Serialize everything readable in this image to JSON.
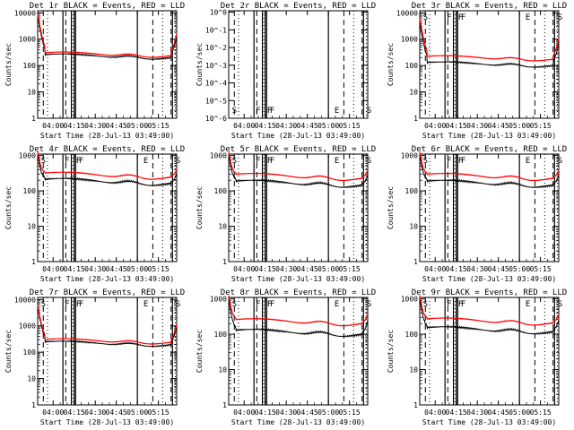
{
  "chart_data": {
    "type": "line",
    "x_tick_labels": [
      "04:00",
      "04:15",
      "04:30",
      "04:45",
      "05:00",
      "05:15"
    ],
    "x_tick_minutes": [
      0,
      15,
      30,
      45,
      60,
      75
    ],
    "x_start_minutes": -11,
    "x_end_minutes": 88,
    "xlabel": "Start Time (28-Jul-13 03:49:00)",
    "ylabel": "Counts/sec",
    "solid_markers_minutes": [
      7,
      13,
      15,
      16,
      60,
      85
    ],
    "dashed_markers_minutes": [
      -7,
      9,
      71,
      84
    ],
    "dotted_markers_minutes": [
      -4,
      14,
      78,
      87
    ],
    "letter_markers": [
      {
        "text": "S",
        "minutes": -10
      },
      {
        "text": "F",
        "minutes": 7
      },
      {
        "text": "F",
        "minutes": 15
      },
      {
        "text": "F",
        "minutes": 17
      },
      {
        "text": "E",
        "minutes": 63
      },
      {
        "text": "S",
        "minutes": 86
      }
    ],
    "series": [
      {
        "name": "Events",
        "color": "#000000"
      },
      {
        "name": "LLD",
        "color": "#ff0000"
      }
    ],
    "panels": [
      {
        "title": "Det 1r BLACK = Events, RED = LLD",
        "empty": false,
        "y_ticks": [
          1,
          10,
          100,
          1000,
          10000
        ],
        "y_tick_labels": [
          "1",
          "10",
          "100",
          "1000",
          "10000"
        ],
        "ylim": [
          1,
          12000
        ],
        "events_base": 220,
        "events_peak": 7000,
        "lld_base": 260,
        "lld_peak": 9000,
        "letters": false
      },
      {
        "title": "Det 2r BLACK = Events, RED = LLD",
        "empty": true,
        "y_ticks": [
          1,
          0.1,
          0.01,
          0.001,
          0.0001,
          1e-05,
          1e-06
        ],
        "y_tick_labels": [
          "10^0",
          "10^-1",
          "10^-2",
          "10^-3",
          "10^-4",
          "10^-5",
          "10^-6"
        ],
        "ylim": [
          1e-06,
          1.2
        ],
        "letters": true
      },
      {
        "title": "Det 3r BLACK = Events, RED = LLD",
        "empty": false,
        "y_ticks": [
          1,
          10,
          100,
          1000,
          10000
        ],
        "y_tick_labels": [
          "1",
          "10",
          "100",
          "1000",
          "10000"
        ],
        "ylim": [
          1,
          12000
        ],
        "events_base": 110,
        "events_peak": 4000,
        "lld_base": 190,
        "lld_peak": 6000,
        "letters": true
      },
      {
        "title": "Det 4r BLACK = Events, RED = LLD",
        "empty": false,
        "y_ticks": [
          1,
          10,
          100,
          1000
        ],
        "y_tick_labels": [
          "1",
          "10",
          "100",
          "1000"
        ],
        "ylim": [
          1,
          1100
        ],
        "events_base": 180,
        "events_peak": 900,
        "lld_base": 270,
        "lld_peak": 1000,
        "letters": true
      },
      {
        "title": "Det 5r BLACK = Events, RED = LLD",
        "empty": false,
        "y_ticks": [
          1,
          10,
          100,
          1000
        ],
        "y_tick_labels": [
          "1",
          "10",
          "100",
          "1000"
        ],
        "ylim": [
          1,
          1100
        ],
        "events_base": 160,
        "events_peak": 900,
        "lld_base": 250,
        "lld_peak": 1000,
        "letters": true
      },
      {
        "title": "Det 6r BLACK = Events, RED = LLD",
        "empty": false,
        "y_ticks": [
          1,
          10,
          100,
          1000
        ],
        "y_tick_labels": [
          "1",
          "10",
          "100",
          "1000"
        ],
        "ylim": [
          1,
          1100
        ],
        "events_base": 160,
        "events_peak": 900,
        "lld_base": 250,
        "lld_peak": 1000,
        "letters": true
      },
      {
        "title": "Det 7r BLACK = Events, RED = LLD",
        "empty": false,
        "y_ticks": [
          1,
          10,
          100,
          1000,
          10000
        ],
        "y_tick_labels": [
          "1",
          "10",
          "100",
          "1000",
          "10000"
        ],
        "ylim": [
          1,
          12000
        ],
        "events_base": 210,
        "events_peak": 5000,
        "lld_base": 260,
        "lld_peak": 6000,
        "letters": true
      },
      {
        "title": "Det 8r BLACK = Events, RED = LLD",
        "empty": false,
        "y_ticks": [
          1,
          10,
          100,
          1000
        ],
        "y_tick_labels": [
          "1",
          "10",
          "100",
          "1000"
        ],
        "ylim": [
          1,
          1100
        ],
        "events_base": 110,
        "events_peak": 900,
        "lld_base": 220,
        "lld_peak": 1000,
        "letters": true
      },
      {
        "title": "Det 9r BLACK = Events, RED = LLD",
        "empty": false,
        "y_ticks": [
          1,
          10,
          100,
          1000
        ],
        "y_tick_labels": [
          "1",
          "10",
          "100",
          "1000"
        ],
        "ylim": [
          1,
          1100
        ],
        "events_base": 130,
        "events_peak": 900,
        "lld_base": 230,
        "lld_peak": 1000,
        "letters": true
      }
    ]
  }
}
